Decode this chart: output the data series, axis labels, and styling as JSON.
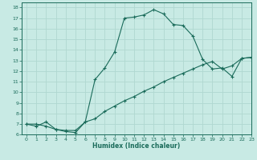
{
  "xlabel": "Humidex (Indice chaleur)",
  "bg_color": "#c8eae4",
  "grid_color": "#b0d8d0",
  "line_color": "#1a6b5a",
  "xlim": [
    -0.5,
    23
  ],
  "ylim": [
    6,
    18.5
  ],
  "xticks": [
    0,
    1,
    2,
    3,
    4,
    5,
    6,
    7,
    8,
    9,
    10,
    11,
    12,
    13,
    14,
    15,
    16,
    17,
    18,
    19,
    20,
    21,
    22,
    23
  ],
  "yticks": [
    6,
    7,
    8,
    9,
    10,
    11,
    12,
    13,
    14,
    15,
    16,
    17,
    18
  ],
  "line1_x": [
    0,
    1,
    2,
    3,
    4,
    5,
    6,
    7,
    8,
    9,
    10,
    11,
    12,
    13,
    14,
    15,
    16,
    17,
    18,
    19,
    20,
    21,
    22,
    23
  ],
  "line1_y": [
    7.0,
    7.0,
    6.8,
    6.5,
    6.3,
    6.2,
    7.2,
    11.2,
    12.3,
    13.8,
    17.0,
    17.1,
    17.3,
    17.8,
    17.4,
    16.4,
    16.3,
    15.3,
    13.1,
    12.2,
    12.3,
    11.5,
    13.2,
    13.3
  ],
  "line2_x": [
    0,
    1,
    2,
    3,
    4,
    5,
    6,
    7,
    8,
    9,
    10,
    11,
    12,
    13,
    14,
    15,
    16,
    17,
    18,
    19,
    20,
    21,
    22,
    23
  ],
  "line2_y": [
    7.0,
    6.8,
    7.2,
    6.5,
    6.4,
    6.4,
    7.2,
    7.5,
    8.2,
    8.7,
    9.2,
    9.6,
    10.1,
    10.5,
    11.0,
    11.4,
    11.8,
    12.2,
    12.6,
    12.9,
    12.2,
    12.5,
    13.2,
    13.3
  ]
}
